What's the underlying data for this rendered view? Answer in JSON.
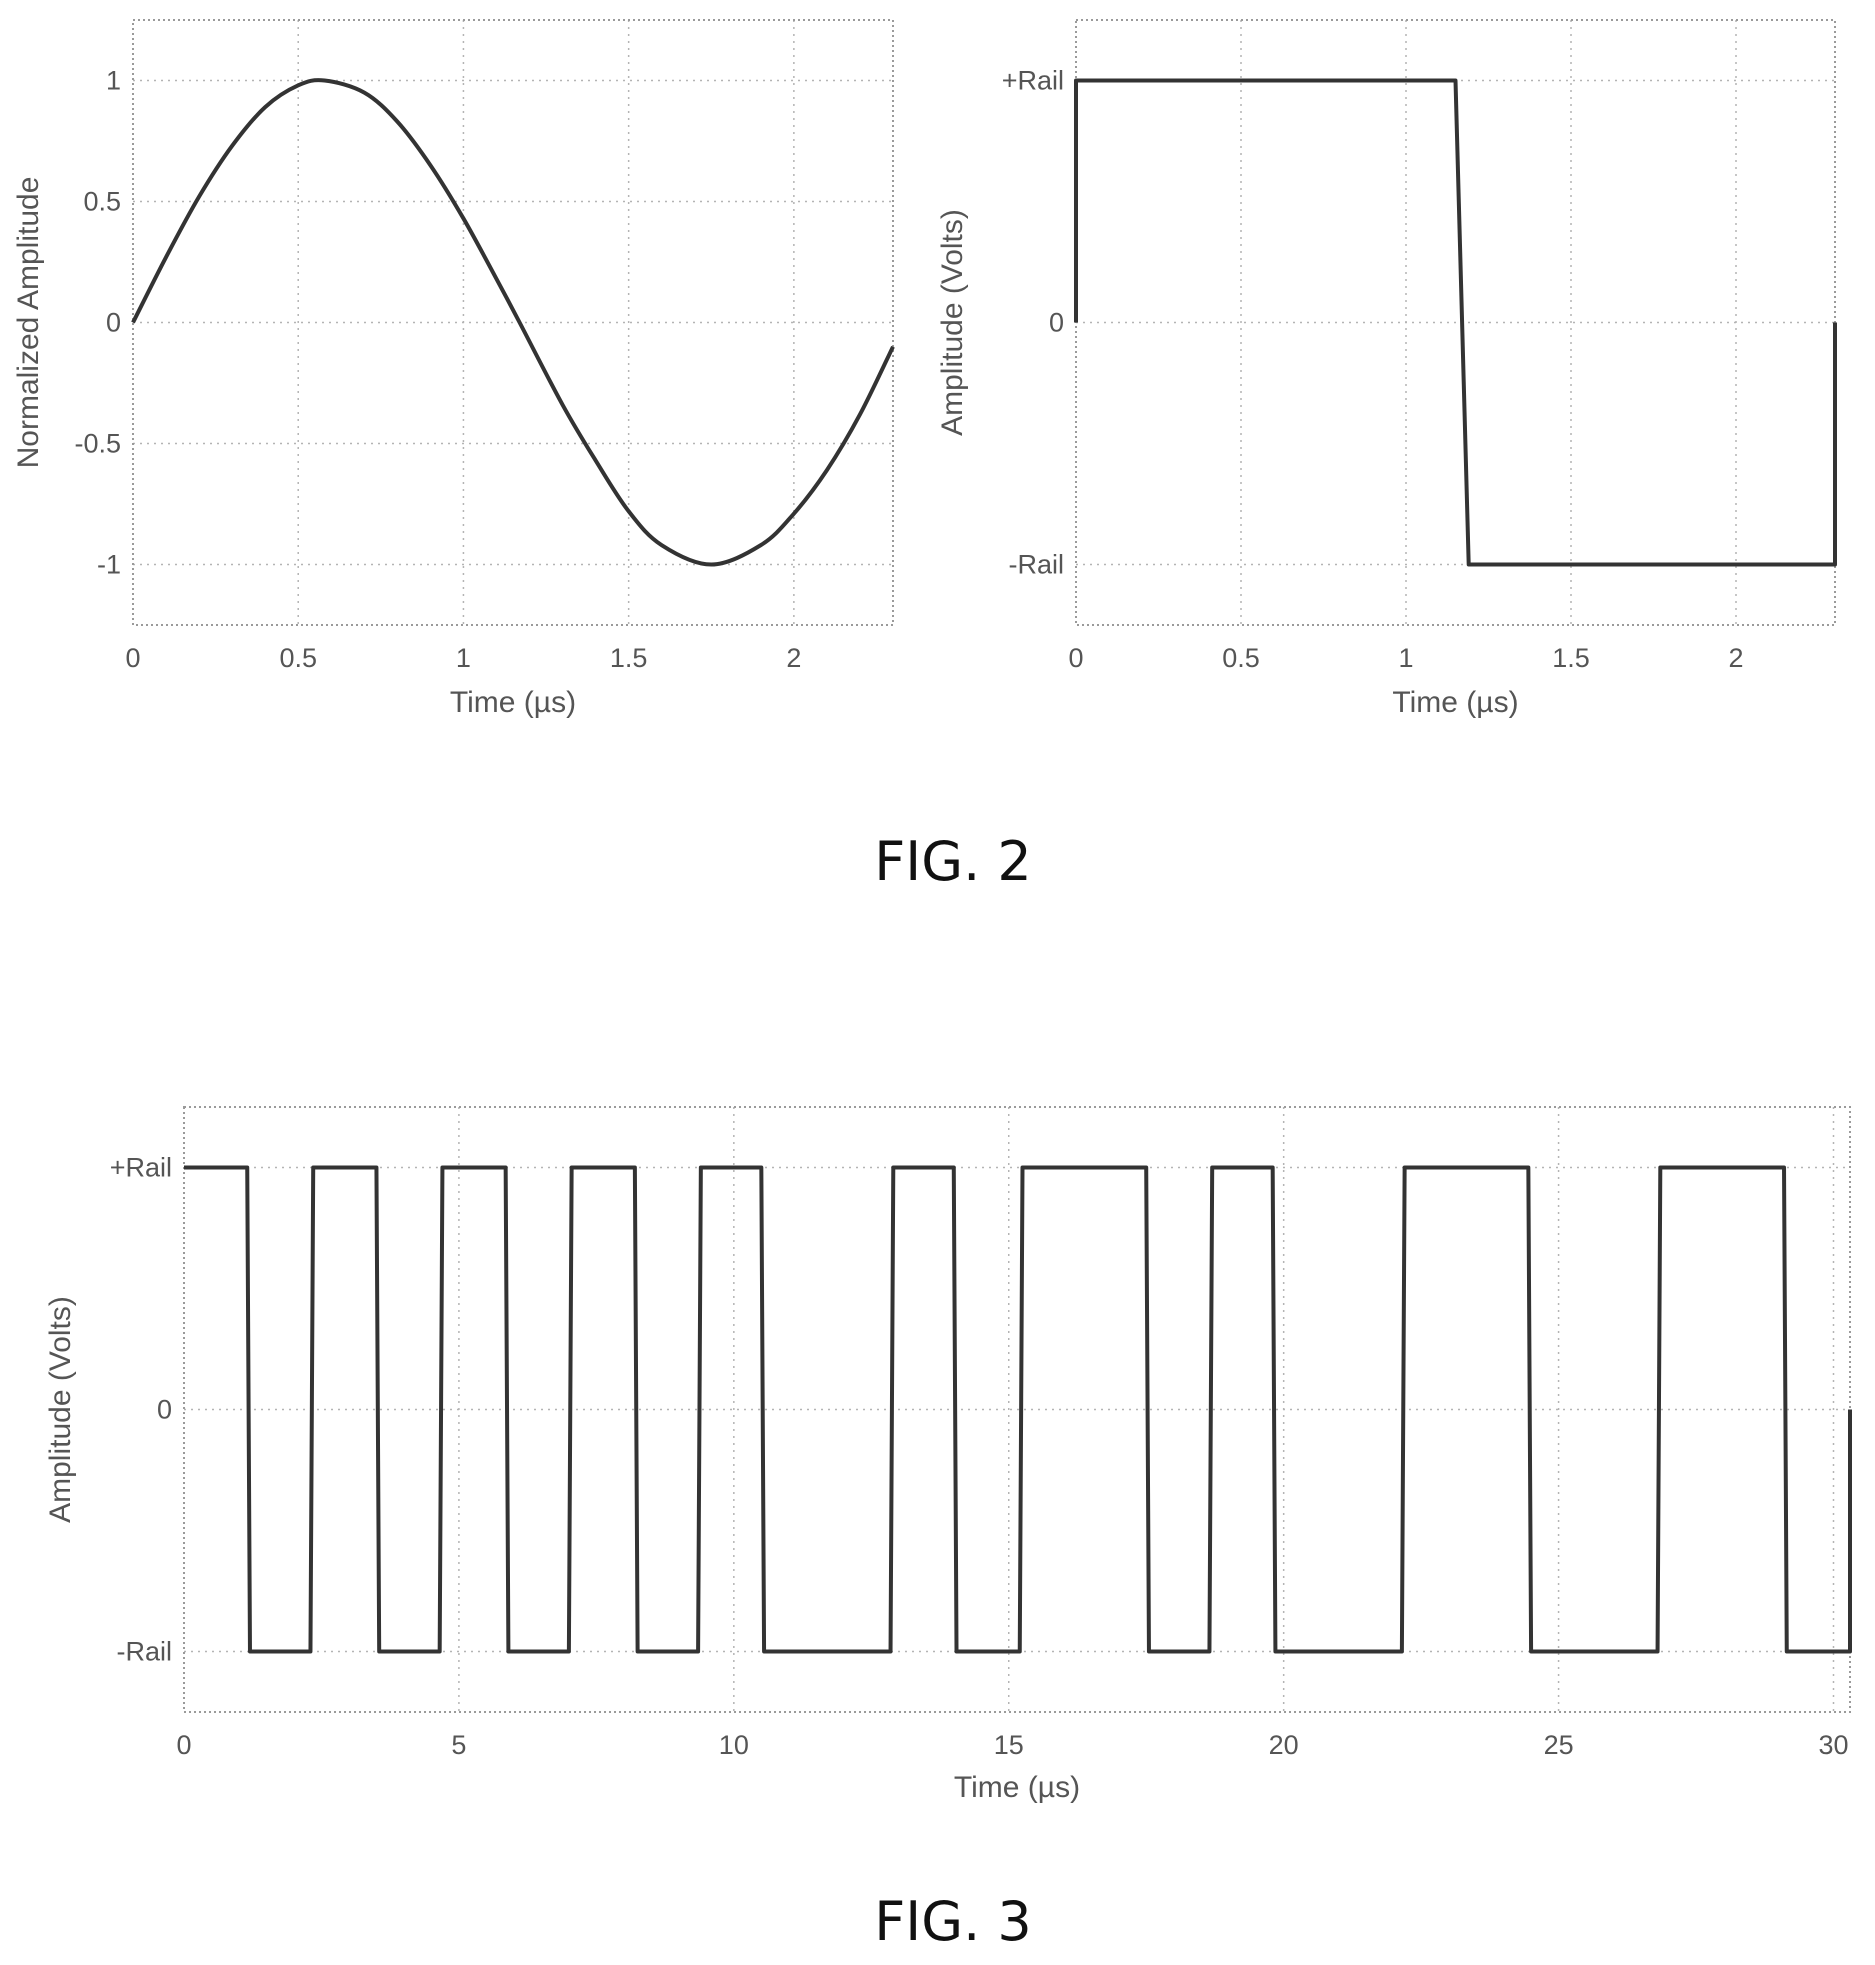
{
  "figure_labels": {
    "fig2": "FIG. 2",
    "fig3": "FIG. 3"
  },
  "chart_data": [
    {
      "id": "fig2-sine",
      "type": "line",
      "xlabel": "Time (µs)",
      "ylabel": "Normalized Amplitude",
      "xlim": [
        0,
        2.3
      ],
      "ylim": [
        -1.25,
        1.25
      ],
      "xticks": [
        0,
        0.5,
        1,
        1.5,
        2
      ],
      "xtick_labels": [
        "0",
        "0.5",
        "1",
        "1.5",
        "2"
      ],
      "yticks": [
        1,
        0.5,
        0,
        -0.5,
        -1
      ],
      "ytick_labels": [
        "1",
        "0.5",
        "0",
        "-0.5",
        "-1"
      ],
      "grid": true,
      "series": [
        {
          "x": [
            0,
            0.1,
            0.2,
            0.3,
            0.4,
            0.5,
            0.58,
            0.7,
            0.8,
            0.9,
            1.0,
            1.1,
            1.17,
            1.3,
            1.4,
            1.5,
            1.6,
            1.75,
            1.9,
            2.0,
            2.1,
            2.2,
            2.3
          ],
          "y": [
            0,
            0.27,
            0.52,
            0.73,
            0.89,
            0.98,
            1.0,
            0.95,
            0.83,
            0.65,
            0.43,
            0.18,
            0.0,
            -0.34,
            -0.57,
            -0.78,
            -0.92,
            -1.0,
            -0.92,
            -0.79,
            -0.61,
            -0.38,
            -0.1
          ]
        }
      ]
    },
    {
      "id": "fig2-square",
      "type": "line",
      "xlabel": "Time (µs)",
      "ylabel": "Amplitude (Volts)",
      "xlim": [
        0,
        2.3
      ],
      "ylim": [
        -1.25,
        1.25
      ],
      "xticks": [
        0,
        0.5,
        1,
        1.5,
        2
      ],
      "xtick_labels": [
        "0",
        "0.5",
        "1",
        "1.5",
        "2"
      ],
      "yticks": [
        1,
        0,
        -1
      ],
      "ytick_labels": [
        "+Rail",
        "0",
        "-Rail"
      ],
      "grid": true,
      "series": [
        {
          "x": [
            0,
            0,
            1.15,
            1.19,
            2.3,
            2.3
          ],
          "y": [
            0,
            1,
            1,
            -1,
            -1,
            0
          ]
        }
      ]
    },
    {
      "id": "fig3-pulse-train",
      "type": "line",
      "xlabel": "Time (µs)",
      "ylabel": "Amplitude (Volts)",
      "xlim": [
        0,
        30.3
      ],
      "ylim": [
        -1.25,
        1.25
      ],
      "xticks": [
        0,
        5,
        10,
        15,
        20,
        25,
        30
      ],
      "xtick_labels": [
        "0",
        "5",
        "10",
        "15",
        "20",
        "25",
        "30"
      ],
      "yticks": [
        1,
        0,
        -1
      ],
      "ytick_labels": [
        "+Rail",
        "0",
        "-Rail"
      ],
      "grid": true,
      "series": [
        {
          "x": [
            0,
            1.15,
            1.2,
            2.3,
            2.35,
            3.5,
            3.55,
            4.65,
            4.7,
            5.85,
            5.9,
            7.0,
            7.05,
            8.2,
            8.25,
            9.35,
            9.4,
            10.5,
            10.55,
            12.85,
            12.9,
            14.0,
            14.05,
            15.2,
            15.25,
            17.5,
            17.55,
            18.65,
            18.7,
            19.8,
            19.85,
            22.15,
            22.2,
            24.45,
            24.5,
            26.8,
            26.85,
            29.1,
            29.15,
            30.3,
            30.3
          ],
          "y": [
            1,
            1,
            -1,
            -1,
            1,
            1,
            -1,
            -1,
            1,
            1,
            -1,
            -1,
            1,
            1,
            -1,
            -1,
            1,
            1,
            -1,
            -1,
            1,
            1,
            -1,
            -1,
            1,
            1,
            -1,
            -1,
            1,
            1,
            -1,
            -1,
            1,
            1,
            -1,
            -1,
            1,
            1,
            -1,
            -1,
            0
          ]
        }
      ]
    }
  ]
}
